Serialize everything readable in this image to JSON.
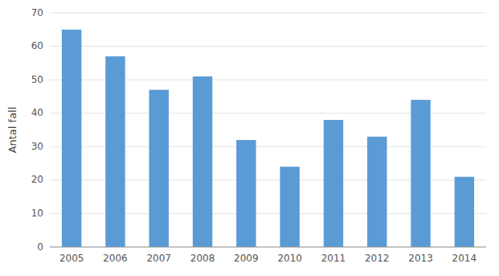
{
  "chart_data": {
    "type": "bar",
    "categories": [
      "2005",
      "2006",
      "2007",
      "2008",
      "2009",
      "2010",
      "2011",
      "2012",
      "2013",
      "2014"
    ],
    "values": [
      65,
      57,
      47,
      51,
      32,
      24,
      38,
      33,
      44,
      21
    ],
    "color": "#5b9bd5",
    "ylabel": "Antal fall",
    "ylim": [
      0,
      70
    ],
    "yticks": [
      0,
      10,
      20,
      30,
      40,
      50,
      60,
      70
    ],
    "grid": true
  }
}
